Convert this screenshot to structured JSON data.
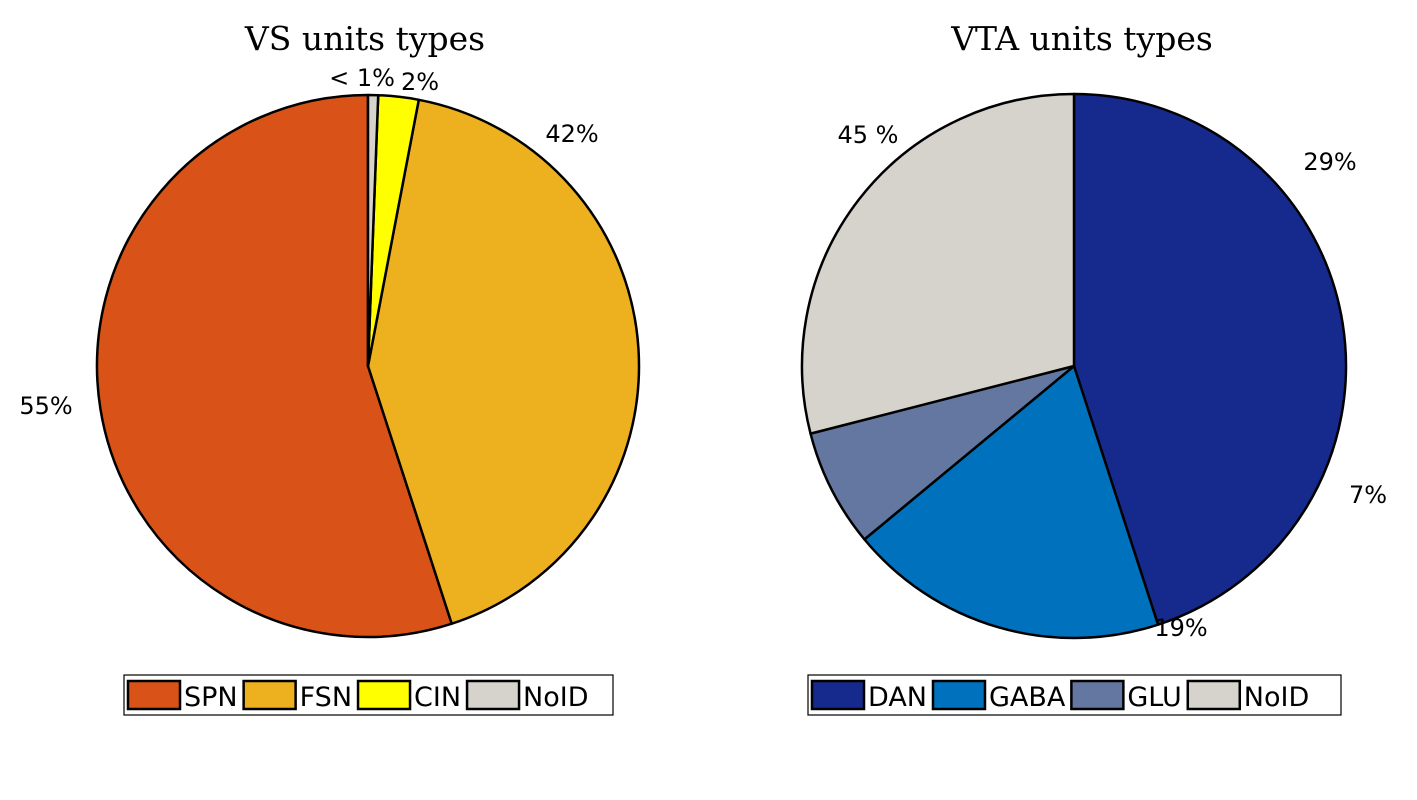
{
  "chart_data": [
    {
      "type": "pie",
      "title": "VS units types",
      "legend_position": "bottom",
      "slices": [
        {
          "name": "SPN",
          "value": 55,
          "label": "55%",
          "color": "#D95319"
        },
        {
          "name": "FSN",
          "value": 42,
          "label": "42%",
          "color": "#EDB120"
        },
        {
          "name": "CIN",
          "value": 2.4,
          "label": "2%",
          "color": "#FFFF00"
        },
        {
          "name": "NoID",
          "value": 0.6,
          "label": "< 1%",
          "color": "#D6D2CC"
        }
      ]
    },
    {
      "type": "pie",
      "title": "VTA units types",
      "legend_position": "bottom",
      "slices": [
        {
          "name": "DAN",
          "value": 45,
          "label": "45 %",
          "color": "#152A8C"
        },
        {
          "name": "GABA",
          "value": 19,
          "label": "19%",
          "color": "#0072BD"
        },
        {
          "name": "GLU",
          "value": 7,
          "label": "7%",
          "color": "#6477A1"
        },
        {
          "name": "NoID",
          "value": 29,
          "label": "29%",
          "color": "#D6D2CC"
        }
      ]
    }
  ]
}
